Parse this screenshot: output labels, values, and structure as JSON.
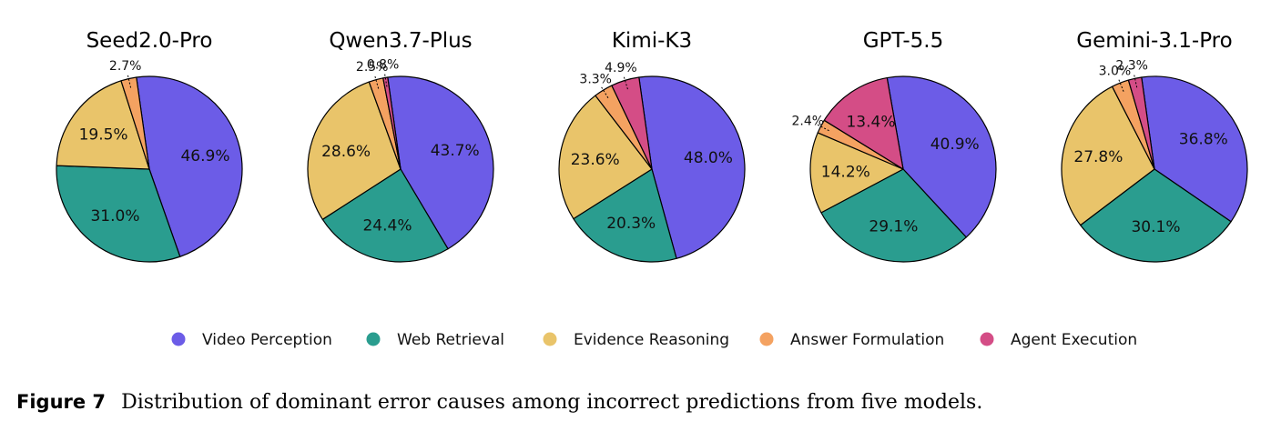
{
  "categories": [
    "Video Perception",
    "Web Retrieval",
    "Evidence Reasoning",
    "Answer Formulation",
    "Agent Execution"
  ],
  "colors": {
    "Video Perception": "#6c5ce7",
    "Web Retrieval": "#2a9d8f",
    "Evidence Reasoning": "#e9c46a",
    "Answer Formulation": "#f4a261",
    "Agent Execution": "#d44d86"
  },
  "chart_data": [
    {
      "type": "pie",
      "title": "Seed2.0-Pro",
      "slices": [
        {
          "category": "Video Perception",
          "value": 46.9,
          "label": "46.9%"
        },
        {
          "category": "Web Retrieval",
          "value": 31.0,
          "label": "31.0%"
        },
        {
          "category": "Evidence Reasoning",
          "value": 19.5,
          "label": "19.5%"
        },
        {
          "category": "Answer Formulation",
          "value": 2.7,
          "label": "2.7%"
        }
      ]
    },
    {
      "type": "pie",
      "title": "Qwen3.7-Plus",
      "slices": [
        {
          "category": "Video Perception",
          "value": 43.7,
          "label": "43.7%"
        },
        {
          "category": "Web Retrieval",
          "value": 24.4,
          "label": "24.4%"
        },
        {
          "category": "Evidence Reasoning",
          "value": 28.6,
          "label": "28.6%"
        },
        {
          "category": "Answer Formulation",
          "value": 2.5,
          "label": "2.5%"
        },
        {
          "category": "Agent Execution",
          "value": 0.8,
          "label": "0.8%"
        }
      ]
    },
    {
      "type": "pie",
      "title": "Kimi-K3",
      "slices": [
        {
          "category": "Video Perception",
          "value": 48.0,
          "label": "48.0%"
        },
        {
          "category": "Web Retrieval",
          "value": 20.3,
          "label": "20.3%"
        },
        {
          "category": "Evidence Reasoning",
          "value": 23.6,
          "label": "23.6%"
        },
        {
          "category": "Answer Formulation",
          "value": 3.3,
          "label": "3.3%"
        },
        {
          "category": "Agent Execution",
          "value": 4.9,
          "label": "4.9%"
        }
      ]
    },
    {
      "type": "pie",
      "title": "GPT-5.5",
      "slices": [
        {
          "category": "Video Perception",
          "value": 40.9,
          "label": "40.9%"
        },
        {
          "category": "Web Retrieval",
          "value": 29.1,
          "label": "29.1%"
        },
        {
          "category": "Evidence Reasoning",
          "value": 14.2,
          "label": "14.2%"
        },
        {
          "category": "Answer Formulation",
          "value": 2.4,
          "label": "2.4%"
        },
        {
          "category": "Agent Execution",
          "value": 13.4,
          "label": "13.4%"
        }
      ]
    },
    {
      "type": "pie",
      "title": "Gemini-3.1-Pro",
      "slices": [
        {
          "category": "Video Perception",
          "value": 36.8,
          "label": "36.8%"
        },
        {
          "category": "Web Retrieval",
          "value": 30.1,
          "label": "30.1%"
        },
        {
          "category": "Evidence Reasoning",
          "value": 27.8,
          "label": "27.8%"
        },
        {
          "category": "Answer Formulation",
          "value": 3.0,
          "label": "3.0%"
        },
        {
          "category": "Agent Execution",
          "value": 2.3,
          "label": "2.3%"
        }
      ]
    }
  ],
  "legend": {
    "placement": "bottom-center",
    "items": [
      "Video Perception",
      "Web Retrieval",
      "Evidence Reasoning",
      "Answer Formulation",
      "Agent Execution"
    ]
  },
  "caption": {
    "figure_number": "Figure 7",
    "text": "Distribution of dominant error causes among incorrect predictions from five models."
  }
}
